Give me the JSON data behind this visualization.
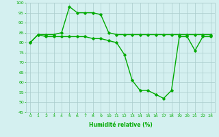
{
  "xlabel": "Humidité relative (%)",
  "x": [
    0,
    1,
    2,
    3,
    4,
    5,
    6,
    7,
    8,
    9,
    10,
    11,
    12,
    13,
    14,
    15,
    16,
    17,
    18,
    19,
    20,
    21,
    22,
    23
  ],
  "line1": [
    80,
    84,
    84,
    84,
    85,
    98,
    95,
    95,
    95,
    94,
    85,
    84,
    84,
    84,
    84,
    84,
    84,
    84,
    84,
    84,
    84,
    84,
    84,
    84
  ],
  "line2": [
    80,
    84,
    83,
    83,
    83,
    83,
    83,
    83,
    82,
    82,
    81,
    80,
    74,
    61,
    56,
    56,
    54,
    52,
    56,
    83,
    83,
    76,
    83,
    83
  ],
  "ylim": [
    45,
    100
  ],
  "xlim": [
    -0.5,
    23.5
  ],
  "yticks": [
    45,
    50,
    55,
    60,
    65,
    70,
    75,
    80,
    85,
    90,
    95,
    100
  ],
  "xticks": [
    0,
    1,
    2,
    3,
    4,
    5,
    6,
    7,
    8,
    9,
    10,
    11,
    12,
    13,
    14,
    15,
    16,
    17,
    18,
    19,
    20,
    21,
    22,
    23
  ],
  "line_color": "#00aa00",
  "bg_color": "#d4f0f0",
  "grid_color": "#aacccc",
  "marker": "D",
  "markersize": 1.8,
  "linewidth": 1.0,
  "tick_fontsize": 4.5,
  "xlabel_fontsize": 5.5
}
